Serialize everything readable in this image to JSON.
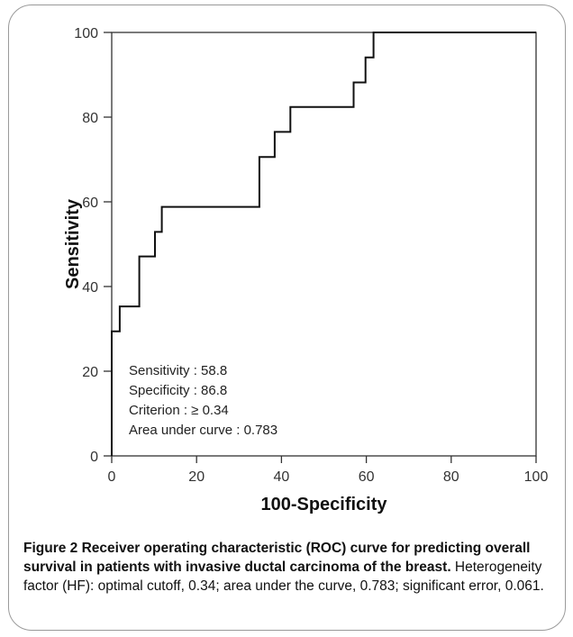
{
  "chart_data": {
    "type": "line",
    "title": "",
    "xlabel": "100-Specificity",
    "ylabel": "Sensitivity",
    "xlim": [
      0,
      100
    ],
    "ylim": [
      0,
      100
    ],
    "xticks": [
      0,
      20,
      40,
      60,
      80,
      100
    ],
    "yticks": [
      0,
      20,
      40,
      60,
      80,
      100
    ],
    "grid": false,
    "series": [
      {
        "x": [
          0,
          0,
          1.9,
          1.9,
          6.5,
          6.5,
          10.2,
          10.2,
          11.8,
          11.8,
          13.2,
          13.2,
          34.8,
          34.8,
          38.4,
          38.4,
          42.1,
          42.1,
          57.0,
          57.0,
          59.8,
          59.8,
          61.7,
          61.7,
          100
        ],
        "y": [
          0,
          29.4,
          29.4,
          35.3,
          35.3,
          47.1,
          47.1,
          52.9,
          52.9,
          58.8,
          58.8,
          58.8,
          58.8,
          70.6,
          70.6,
          76.5,
          76.5,
          82.4,
          82.4,
          88.2,
          88.2,
          94.1,
          94.1,
          100,
          100
        ]
      }
    ],
    "annotations": [
      "Sensitivity : 58.8",
      "Specificity : 86.8",
      "Criterion : ≥ 0.34",
      "Area under curve : 0.783"
    ]
  },
  "caption": {
    "bold": "Figure 2 Receiver operating characteristic (ROC) curve for predicting overall survival in patients with invasive ductal carcinoma of the breast.",
    "text": " Heterogeneity factor (HF): optimal cutoff, 0.34; area under the curve, 0.783; significant error, 0.061."
  }
}
